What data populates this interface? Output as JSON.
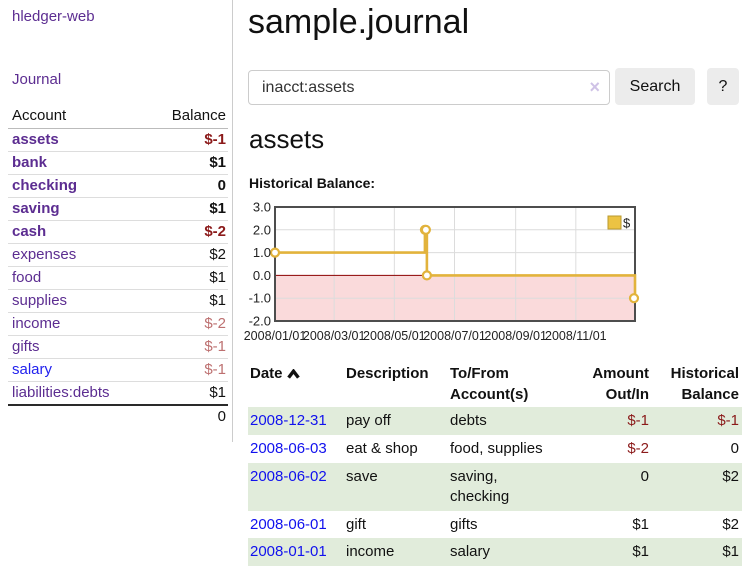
{
  "brand": "hledger-web",
  "nav": {
    "journal": "Journal"
  },
  "sidebar": {
    "headers": {
      "account": "Account",
      "balance": "Balance"
    },
    "rows": [
      {
        "account": "assets",
        "balance": "$-1",
        "level": 1,
        "bold": true
      },
      {
        "account": "bank",
        "balance": "$1",
        "level": 2,
        "bold": true
      },
      {
        "account": "checking",
        "balance": "0",
        "level": 3,
        "bold": true
      },
      {
        "account": "saving",
        "balance": "$1",
        "level": 3,
        "bold": true
      },
      {
        "account": "cash",
        "balance": "$-2",
        "level": 2,
        "bold": true
      },
      {
        "account": "expenses",
        "balance": "$2",
        "level": 1,
        "bold": false
      },
      {
        "account": "food",
        "balance": "$1",
        "level": 2,
        "bold": false
      },
      {
        "account": "supplies",
        "balance": "$1",
        "level": 2,
        "bold": false
      },
      {
        "account": "income",
        "balance": "$-2",
        "level": 1,
        "bold": false
      },
      {
        "account": "gifts",
        "balance": "$-1",
        "level": 2,
        "bold": false
      },
      {
        "account": "salary",
        "balance": "$-1",
        "level": 2,
        "bold": false,
        "blue": true
      },
      {
        "account": "liabilities:debts",
        "balance": "$1",
        "level": 1,
        "bold": false
      }
    ],
    "total": "0"
  },
  "header": {
    "title": "sample.journal"
  },
  "search": {
    "value": "inacct:assets",
    "clear": "×",
    "button": "Search",
    "help": "?"
  },
  "account_page": {
    "title": "assets",
    "chart_label": "Historical Balance:"
  },
  "chart_data": {
    "type": "line",
    "step": true,
    "title": "Historical Balance:",
    "series": [
      {
        "name": "$",
        "points": [
          [
            "2008-01-01",
            1
          ],
          [
            "2008-06-01",
            2
          ],
          [
            "2008-06-02",
            2
          ],
          [
            "2008-06-03",
            0
          ],
          [
            "2008-12-31",
            -1
          ]
        ]
      }
    ],
    "ylim": [
      -2,
      3
    ],
    "x_range": [
      "2008-01-01",
      "2008-12-31"
    ],
    "yticks": [
      "3.0",
      "2.0",
      "1.0",
      "0.0",
      "-1.0",
      "-2.0"
    ],
    "xticks": [
      "2008/01/01",
      "2008/03/01",
      "2008/05/01",
      "2008/07/01",
      "2008/09/01",
      "2008/11/01"
    ],
    "legend": {
      "label": "$",
      "position": "top-right"
    },
    "grid": true,
    "colors": {
      "line": "#e2b33c",
      "negative_fill": "#fadadb",
      "zero_line": "#8b0000",
      "grid": "#dcdcdc",
      "border": "#4d4d4d",
      "legend_fill": "#ecc343",
      "legend_border": "#b9992f"
    }
  },
  "register": {
    "headers": [
      "Date",
      "Description",
      "To/From Account(s)",
      "Amount Out/In",
      "Historical Balance"
    ],
    "sort_icon": "chevron-up",
    "rows": [
      {
        "date": "2008-12-31",
        "description": "pay off",
        "accounts": "debts",
        "amount": "$-1",
        "balance": "$-1"
      },
      {
        "date": "2008-06-03",
        "description": "eat & shop",
        "accounts": "food, supplies",
        "amount": "$-2",
        "balance": "0"
      },
      {
        "date": "2008-06-02",
        "description": "save",
        "accounts": "saving, checking",
        "amount": "0",
        "balance": "$2"
      },
      {
        "date": "2008-06-01",
        "description": "gift",
        "accounts": "gifts",
        "amount": "$1",
        "balance": "$2"
      },
      {
        "date": "2008-01-01",
        "description": "income",
        "accounts": "salary",
        "amount": "$1",
        "balance": "$1"
      }
    ]
  }
}
